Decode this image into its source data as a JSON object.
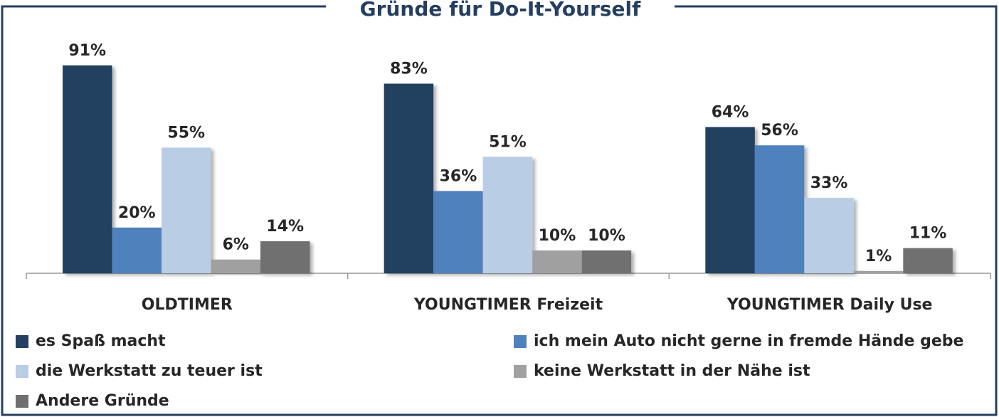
{
  "chart_data": {
    "type": "bar",
    "title": "Gründe für Do-It-Yourself",
    "categories": [
      "OLDTIMER",
      "YOUNGTIMER Freizeit",
      "YOUNGTIMER Daily Use"
    ],
    "series": [
      {
        "name": "es Spaß macht",
        "color": "#243f60",
        "values": [
          91,
          83,
          64
        ],
        "value_labels": [
          "91%",
          "83%",
          "64%"
        ]
      },
      {
        "name": "ich mein Auto nicht gerne in fremde Hände gebe",
        "color": "#4f81bd",
        "values": [
          20,
          36,
          56
        ],
        "value_labels": [
          "20%",
          "36%",
          "56%"
        ]
      },
      {
        "name": "die Werkstatt zu teuer ist",
        "color": "#b9cde5",
        "values": [
          55,
          51,
          33
        ],
        "value_labels": [
          "55%",
          "51%",
          "33%"
        ]
      },
      {
        "name": "keine Werkstatt in der Nähe ist",
        "color": "#a0a0a0",
        "values": [
          6,
          10,
          1
        ],
        "value_labels": [
          "6%",
          "10%",
          "1%"
        ]
      },
      {
        "name": "Andere Gründe",
        "color": "#6f6f6f",
        "values": [
          14,
          10,
          11
        ],
        "value_labels": [
          "14%",
          "10%",
          "11%"
        ]
      }
    ]
  }
}
